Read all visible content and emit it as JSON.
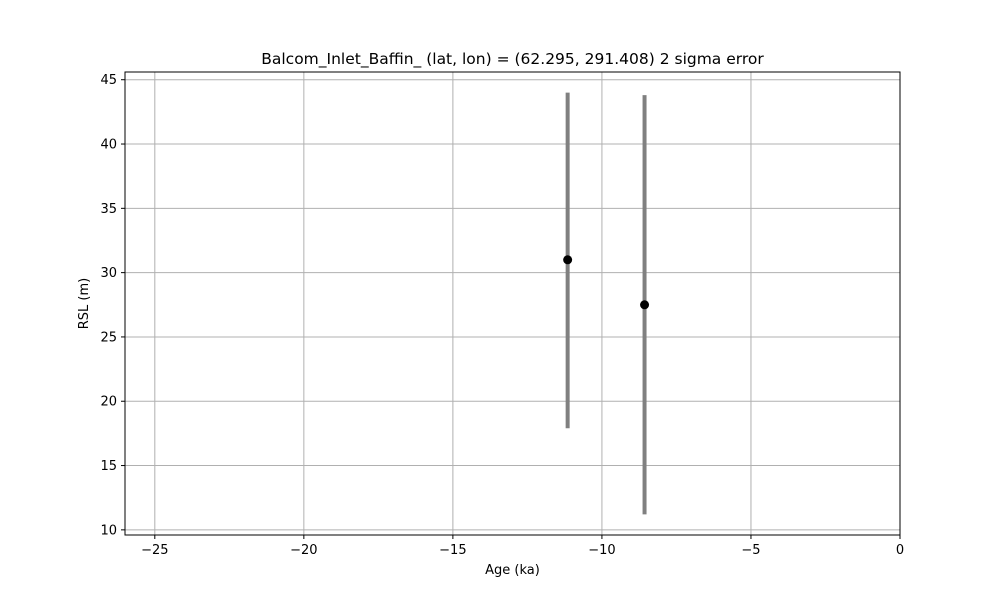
{
  "chart_data": {
    "type": "scatter",
    "title": "Balcom_Inlet_Baffin_ (lat, lon) = (62.295, 291.408)  2 sigma error",
    "xlabel": "Age (ka)",
    "ylabel": "RSL (m)",
    "xlim": [
      -26,
      0
    ],
    "ylim": [
      9.6,
      45.6
    ],
    "xticks": [
      -25,
      -20,
      -15,
      -10,
      -5,
      0
    ],
    "yticks": [
      10,
      15,
      20,
      25,
      30,
      35,
      40,
      45
    ],
    "grid": true,
    "legend": "none",
    "points": [
      {
        "x": -11.15,
        "y": 31.0,
        "ylow": 17.9,
        "yhigh": 44.0
      },
      {
        "x": -8.57,
        "y": 27.5,
        "ylow": 11.2,
        "yhigh": 43.8
      }
    ],
    "colors": {
      "marker": "#000000",
      "errorbar": "#808080",
      "grid": "#b0b0b0"
    }
  }
}
